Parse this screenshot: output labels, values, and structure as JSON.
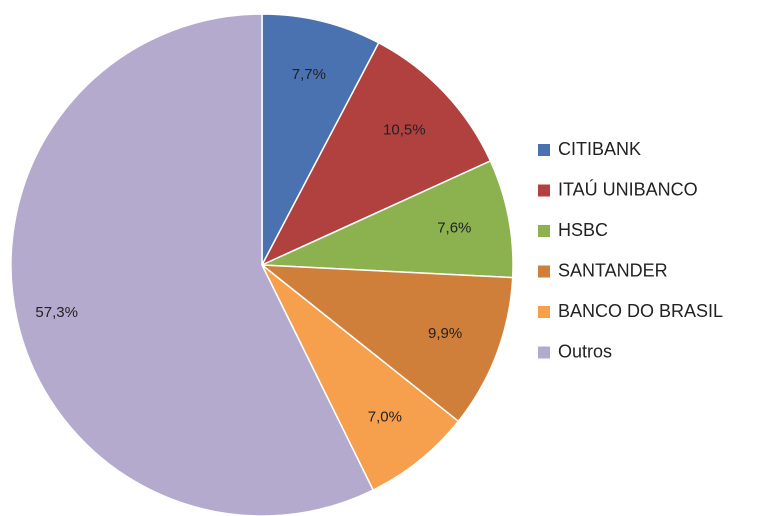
{
  "chart_data": {
    "type": "pie",
    "categories": [
      "CITIBANK",
      "ITAÚ UNIBANCO",
      "HSBC",
      "SANTANDER",
      "BANCO DO BRASIL",
      "Outros"
    ],
    "values": [
      7.7,
      10.5,
      7.6,
      9.9,
      7.0,
      57.3
    ],
    "value_labels": [
      "7,7%",
      "10,5%",
      "7,6%",
      "9,9%",
      "7,0%",
      "57,3%"
    ],
    "colors": [
      "#4a72b0",
      "#b0413e",
      "#8cb14f",
      "#d07f3a",
      "#f6a04d",
      "#b4aacd"
    ],
    "legend": "right"
  }
}
